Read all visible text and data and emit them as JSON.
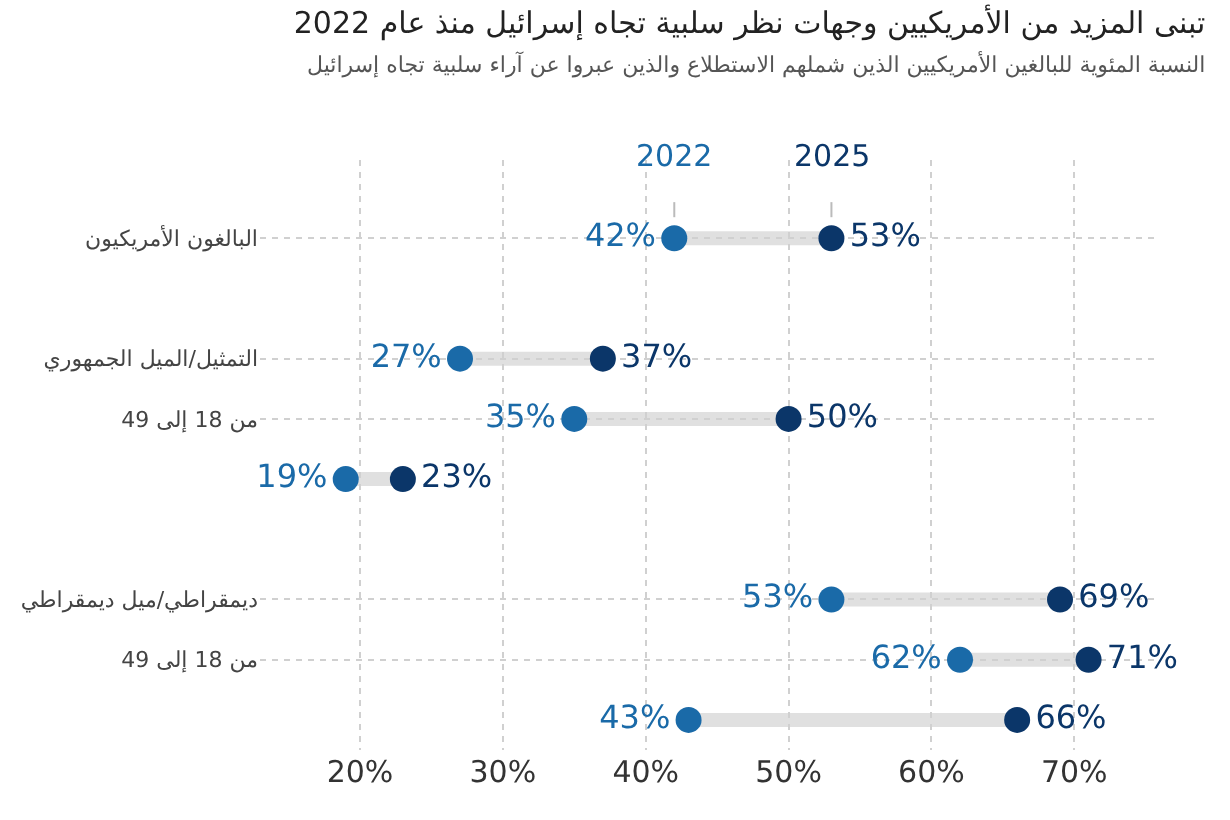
{
  "chart_data": {
    "type": "scatter",
    "title": "تبنى المزيد من الأمريكيين وجهات نظر سلبية تجاه إسرائيل منذ عام 2022",
    "subtitle": "النسبة المئوية للبالغين الأمريكيين الذين شملهم الاستطلاع والذين عبروا عن آراء سلبية تجاه إسرائيل",
    "orientation": "horizontal",
    "categories": [
      "البالغون الأمريكيون",
      null,
      "التمثيل/الميل الجمهوري",
      "من 18 إلى 49",
      null,
      null,
      "ديمقراطي/ميل ديمقراطي",
      "من 18 إلى 49",
      null
    ],
    "series": [
      {
        "name": "2022",
        "color": "#1a6aa8",
        "values": [
          42,
          null,
          27,
          35,
          19,
          null,
          53,
          62,
          43
        ],
        "value_labels": [
          "42%",
          null,
          "27%",
          "35%",
          "19%",
          null,
          "53%",
          "62%",
          "43%"
        ]
      },
      {
        "name": "2025",
        "color": "#0b3669",
        "values": [
          53,
          null,
          37,
          50,
          23,
          null,
          69,
          71,
          66
        ],
        "value_labels": [
          "53%",
          null,
          "37%",
          "50%",
          "23%",
          null,
          "69%",
          "71%",
          "66%"
        ]
      }
    ],
    "xlim": [
      13,
      76
    ],
    "xticks": [
      {
        "value": 20,
        "label": "20%"
      },
      {
        "value": 30,
        "label": "30%"
      },
      {
        "value": 40,
        "label": "40%"
      },
      {
        "value": 50,
        "label": "50%"
      },
      {
        "value": 60,
        "label": "60%"
      },
      {
        "value": 70,
        "label": "70%"
      }
    ],
    "grid": true,
    "marker": "circle",
    "legend": false
  }
}
